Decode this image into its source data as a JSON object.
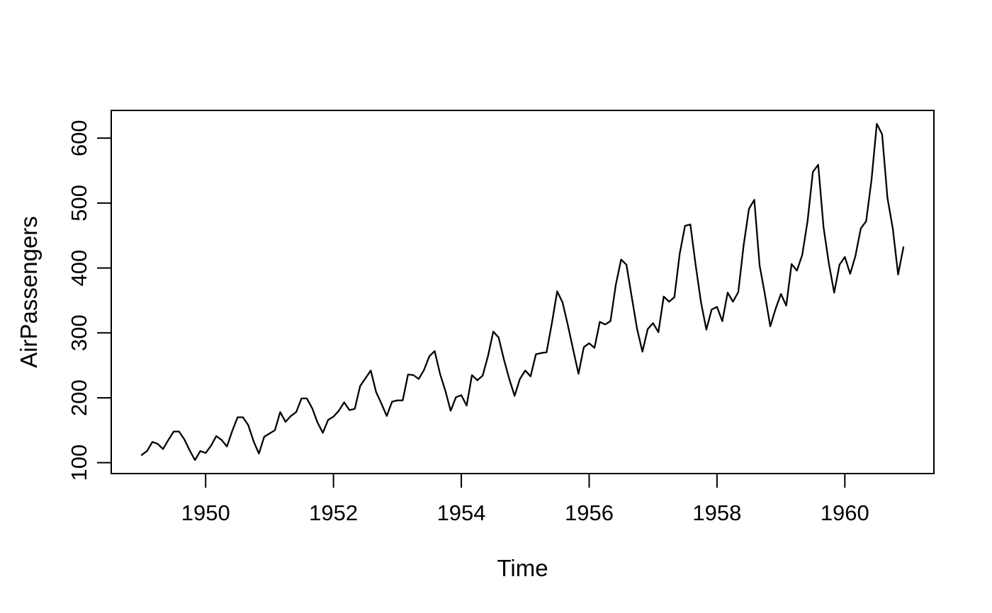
{
  "figure": {
    "background_color": "#ffffff",
    "line_color": "#000000",
    "axis_color": "#000000"
  },
  "chart_data": {
    "type": "line",
    "title": "",
    "xlabel": "Time",
    "ylabel": "AirPassengers",
    "x_ticks": [
      1950,
      1952,
      1954,
      1956,
      1958,
      1960
    ],
    "y_ticks": [
      100,
      200,
      300,
      400,
      500,
      600
    ],
    "xlim": [
      1948.5233,
      1961.3933
    ],
    "ylim": [
      83.28,
      642.72
    ],
    "grid": "off",
    "legend": "none",
    "series": [
      {
        "name": "AirPassengers",
        "start_year": 1949,
        "frequency": 12,
        "values": [
          112,
          118,
          132,
          129,
          121,
          135,
          148,
          148,
          136,
          119,
          104,
          118,
          115,
          126,
          141,
          135,
          125,
          149,
          170,
          170,
          158,
          133,
          114,
          140,
          145,
          150,
          178,
          163,
          172,
          178,
          199,
          199,
          184,
          162,
          146,
          166,
          171,
          180,
          193,
          181,
          183,
          218,
          230,
          242,
          209,
          191,
          172,
          194,
          196,
          196,
          236,
          235,
          229,
          243,
          264,
          272,
          237,
          211,
          180,
          201,
          204,
          188,
          235,
          227,
          234,
          264,
          302,
          293,
          259,
          229,
          203,
          229,
          242,
          233,
          267,
          269,
          270,
          315,
          364,
          347,
          312,
          274,
          237,
          278,
          284,
          277,
          317,
          313,
          318,
          374,
          413,
          405,
          355,
          306,
          271,
          306,
          315,
          301,
          356,
          348,
          355,
          422,
          465,
          467,
          404,
          347,
          305,
          336,
          340,
          318,
          362,
          348,
          363,
          435,
          491,
          505,
          404,
          359,
          310,
          337,
          360,
          342,
          406,
          396,
          420,
          472,
          548,
          559,
          463,
          407,
          362,
          405,
          417,
          391,
          419,
          461,
          472,
          535,
          622,
          606,
          508,
          461,
          390,
          432
        ]
      }
    ]
  }
}
